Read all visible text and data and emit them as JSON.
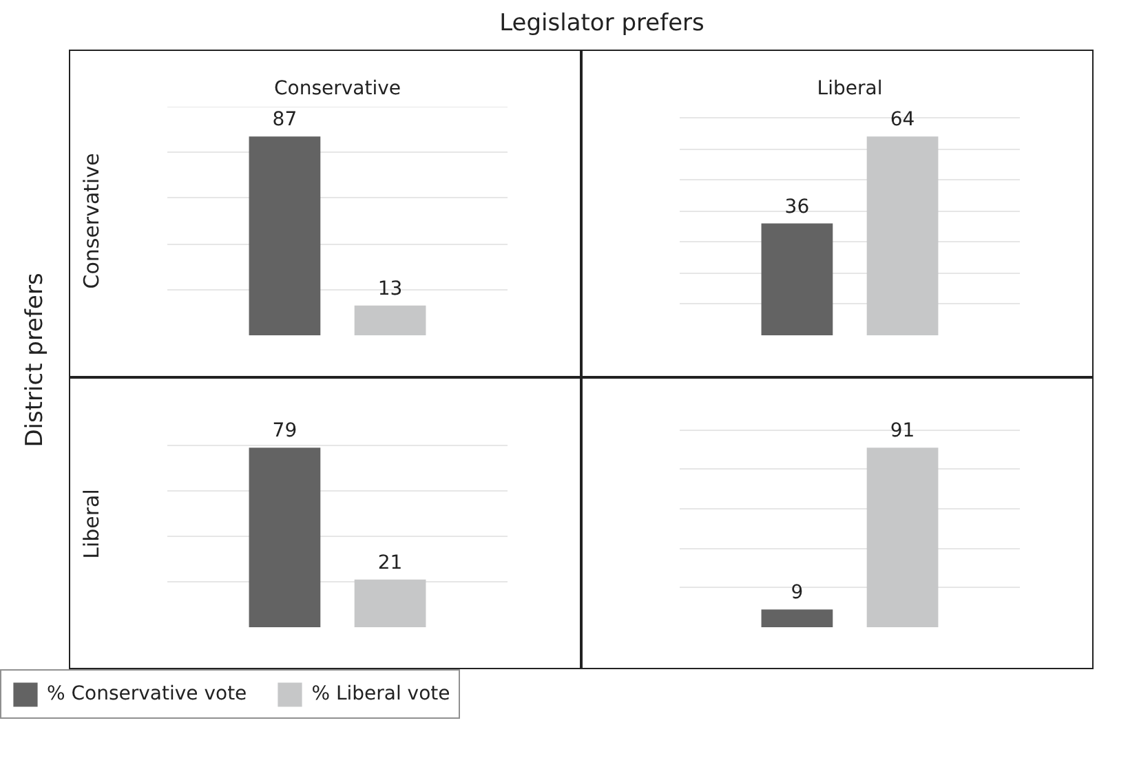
{
  "chart_data": [
    {
      "type": "bar",
      "title": "Conservative",
      "ylabel": "Conservative",
      "annotations": [
        "Legislator prefers",
        "District prefers"
      ],
      "categories": [
        null
      ],
      "series": [
        {
          "color": "#636363",
          "values": [
            87
          ]
        },
        {
          "color": "#c6c7c8",
          "values": [
            13
          ]
        }
      ],
      "grid": "y",
      "tick_labels": false,
      "data_labels": true
    },
    {
      "type": "bar",
      "title": "Liberal",
      "categories": [
        null
      ],
      "series": [
        {
          "color": "#636363",
          "values": [
            36
          ]
        },
        {
          "color": "#c6c7c8",
          "values": [
            64
          ]
        }
      ],
      "grid": "y",
      "tick_labels": false,
      "data_labels": true
    },
    {
      "type": "bar",
      "ylabel": "Liberal",
      "categories": [
        null
      ],
      "series": [
        {
          "name": "% Conservative vote",
          "color": "#636363",
          "values": [
            79
          ]
        },
        {
          "name": "% Liberal vote",
          "color": "#c6c7c8",
          "values": [
            21
          ]
        }
      ],
      "grid": "y",
      "tick_labels": false,
      "data_labels": true,
      "legend": "bottom"
    },
    {
      "type": "bar",
      "categories": [
        null
      ],
      "series": [
        {
          "color": "#636363",
          "values": [
            9
          ]
        },
        {
          "color": "#c6c7c8",
          "values": [
            91
          ]
        }
      ],
      "grid": "y",
      "tick_labels": false,
      "data_labels": true
    }
  ]
}
